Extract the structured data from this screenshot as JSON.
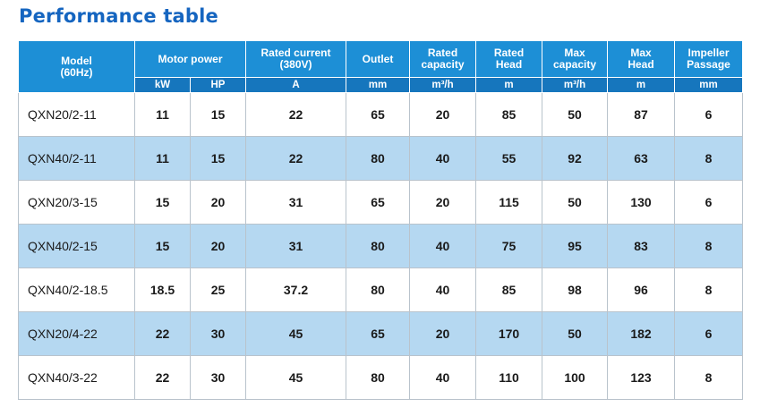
{
  "title": "Performance table",
  "header": {
    "model": [
      "Model",
      "(60Hz)"
    ],
    "motor_power": "Motor power",
    "rated_current": [
      "Rated current",
      "(380V)"
    ],
    "outlet": "Outlet",
    "rated_capacity": [
      "Rated",
      "capacity"
    ],
    "rated_head": [
      "Rated",
      "Head"
    ],
    "max_capacity": [
      "Max",
      "capacity"
    ],
    "max_head": [
      "Max",
      "Head"
    ],
    "impeller_passage": [
      "Impeller",
      "Passage"
    ]
  },
  "units": [
    "kW",
    "HP",
    "A",
    "mm",
    "m³/h",
    "m",
    "m³/h",
    "m",
    "mm"
  ],
  "rows": [
    [
      "QXN20/2-11",
      "11",
      "15",
      "22",
      "65",
      "20",
      "85",
      "50",
      "87",
      "6"
    ],
    [
      "QXN40/2-11",
      "11",
      "15",
      "22",
      "80",
      "40",
      "55",
      "92",
      "63",
      "8"
    ],
    [
      "QXN20/3-15",
      "15",
      "20",
      "31",
      "65",
      "20",
      "115",
      "50",
      "130",
      "6"
    ],
    [
      "QXN40/2-15",
      "15",
      "20",
      "31",
      "80",
      "40",
      "75",
      "95",
      "83",
      "8"
    ],
    [
      "QXN40/2-18.5",
      "18.5",
      "25",
      "37.2",
      "80",
      "40",
      "85",
      "98",
      "96",
      "8"
    ],
    [
      "QXN20/4-22",
      "22",
      "30",
      "45",
      "65",
      "20",
      "170",
      "50",
      "182",
      "6"
    ],
    [
      "QXN40/3-22",
      "22",
      "30",
      "45",
      "80",
      "40",
      "110",
      "100",
      "123",
      "8"
    ]
  ],
  "colors": {
    "title": "#1565c0",
    "header_bg": "#1d8fd6",
    "units_bg": "#1676bd",
    "row_alt_bg": "#b5d8f1"
  }
}
